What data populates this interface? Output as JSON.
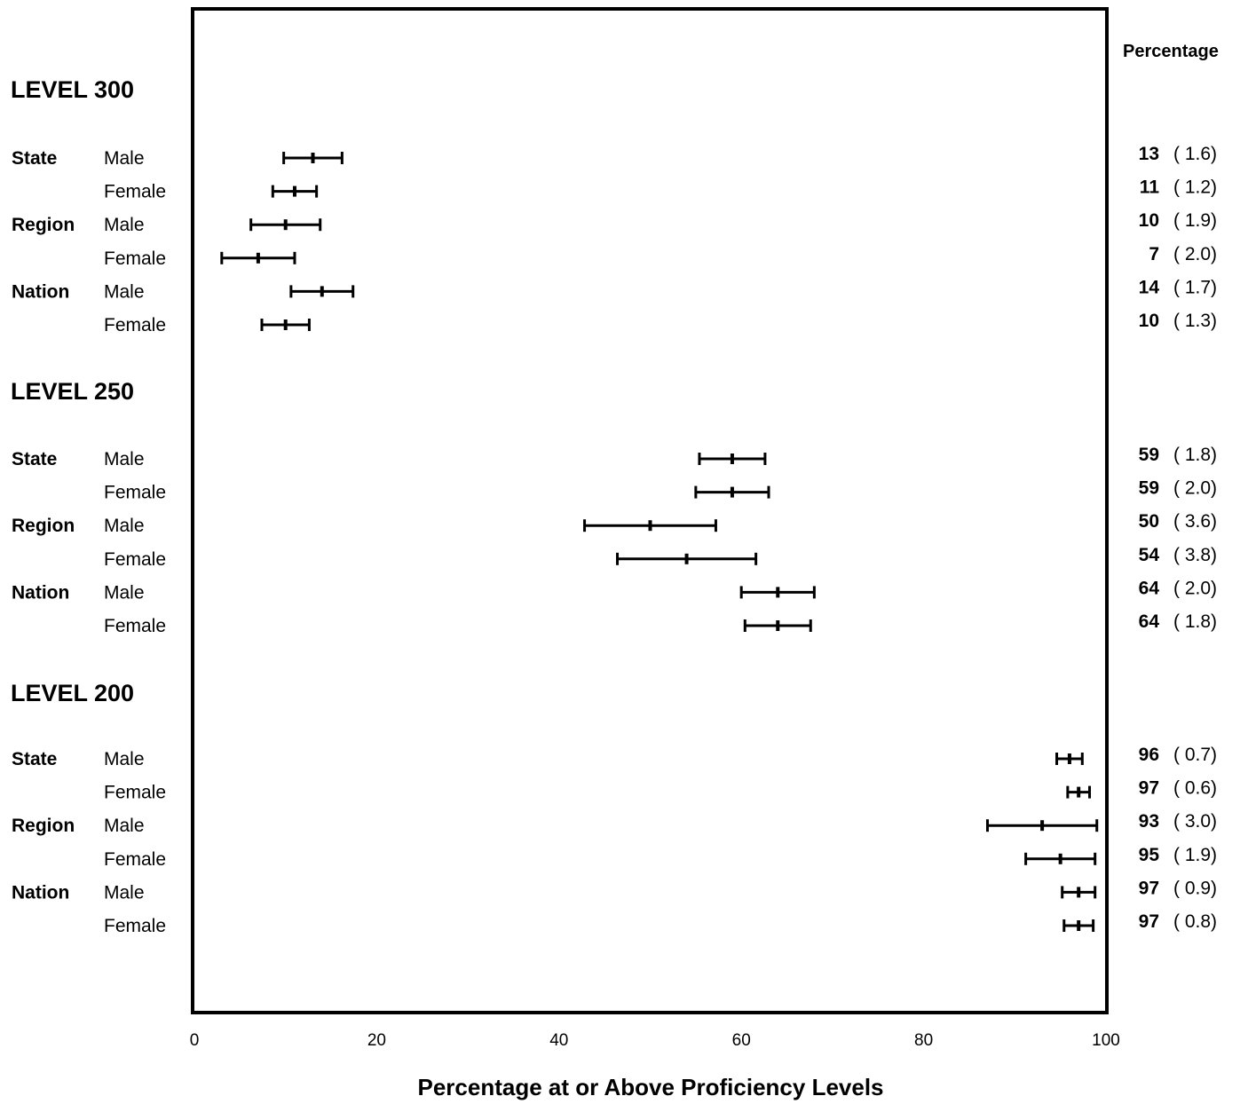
{
  "chart_data": {
    "type": "errorbar",
    "xlabel": "Percentage at or Above Proficiency Levels",
    "xlim": [
      0,
      100
    ],
    "xticks": [
      "0",
      "20",
      "40",
      "60",
      "80",
      "100"
    ],
    "value_header": "Percentage",
    "grid": false,
    "levels": [
      {
        "label": "LEVEL 300",
        "rows": [
          {
            "group": "State",
            "subgroup": "Male",
            "value": 13,
            "se": "1.6",
            "value_label": "13",
            "se_label": "( 1.6)"
          },
          {
            "group": "",
            "subgroup": "Female",
            "value": 11,
            "se": "1.2",
            "value_label": "11",
            "se_label": "( 1.2)"
          },
          {
            "group": "Region",
            "subgroup": "Male",
            "value": 10,
            "se": "1.9",
            "value_label": "10",
            "se_label": "( 1.9)"
          },
          {
            "group": "",
            "subgroup": "Female",
            "value": 7,
            "se": "2.0",
            "value_label": "7",
            "se_label": "( 2.0)"
          },
          {
            "group": "Nation",
            "subgroup": "Male",
            "value": 14,
            "se": "1.7",
            "value_label": "14",
            "se_label": "( 1.7)"
          },
          {
            "group": "",
            "subgroup": "Female",
            "value": 10,
            "se": "1.3",
            "value_label": "10",
            "se_label": "( 1.3)"
          }
        ]
      },
      {
        "label": "LEVEL 250",
        "rows": [
          {
            "group": "State",
            "subgroup": "Male",
            "value": 59,
            "se": "1.8",
            "value_label": "59",
            "se_label": "( 1.8)"
          },
          {
            "group": "",
            "subgroup": "Female",
            "value": 59,
            "se": "2.0",
            "value_label": "59",
            "se_label": "( 2.0)"
          },
          {
            "group": "Region",
            "subgroup": "Male",
            "value": 50,
            "se": "3.6",
            "value_label": "50",
            "se_label": "( 3.6)"
          },
          {
            "group": "",
            "subgroup": "Female",
            "value": 54,
            "se": "3.8",
            "value_label": "54",
            "se_label": "( 3.8)"
          },
          {
            "group": "Nation",
            "subgroup": "Male",
            "value": 64,
            "se": "2.0",
            "value_label": "64",
            "se_label": "( 2.0)"
          },
          {
            "group": "",
            "subgroup": "Female",
            "value": 64,
            "se": "1.8",
            "value_label": "64",
            "se_label": "( 1.8)"
          }
        ]
      },
      {
        "label": "LEVEL 200",
        "rows": [
          {
            "group": "State",
            "subgroup": "Male",
            "value": 96,
            "se": "0.7",
            "value_label": "96",
            "se_label": "( 0.7)"
          },
          {
            "group": "",
            "subgroup": "Female",
            "value": 97,
            "se": "0.6",
            "value_label": "97",
            "se_label": "( 0.6)"
          },
          {
            "group": "Region",
            "subgroup": "Male",
            "value": 93,
            "se": "3.0",
            "value_label": "93",
            "se_label": "( 3.0)"
          },
          {
            "group": "",
            "subgroup": "Female",
            "value": 95,
            "se": "1.9",
            "value_label": "95",
            "se_label": "( 1.9)"
          },
          {
            "group": "Nation",
            "subgroup": "Male",
            "value": 97,
            "se": "0.9",
            "value_label": "97",
            "se_label": "( 0.9)"
          },
          {
            "group": "",
            "subgroup": "Female",
            "value": 97,
            "se": "0.8",
            "value_label": "97",
            "se_label": "( 0.8)"
          }
        ]
      }
    ]
  }
}
